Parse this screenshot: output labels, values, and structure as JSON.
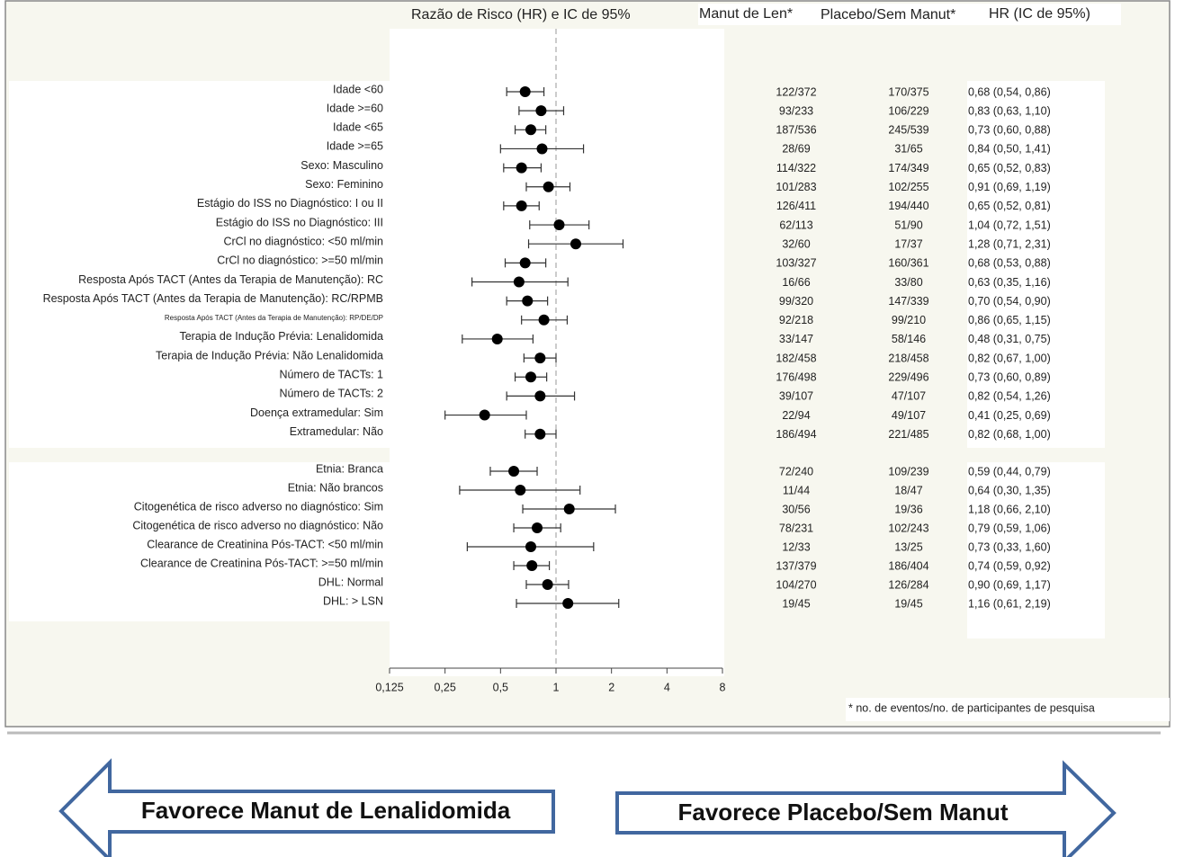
{
  "chart_data": {
    "type": "forest",
    "title": "Razão de Risco (HR) e IC de 95%",
    "column_headers": [
      "Manut de Len*",
      "Placebo/Sem Manut*",
      "HR (IC de 95%)"
    ],
    "footnote": "* no. de eventos/no. de participantes de pesquisa",
    "arrow_left": "Favorece Manut de Lenalidomida",
    "arrow_right": "Favorece Placebo/Sem Manut",
    "log_scale": true,
    "xlim": [
      0.125,
      8
    ],
    "xticks": [
      {
        "value": 0.125,
        "label": "0,125"
      },
      {
        "value": 0.25,
        "label": "0,25"
      },
      {
        "value": 0.5,
        "label": "0,5"
      },
      1,
      2,
      4,
      8
    ],
    "reference_line": 1,
    "color": "#000000",
    "categories": [
      "Idade <60",
      "Idade >=60",
      "Idade <65",
      "Idade >=65",
      "Sexo: Masculino",
      "Sexo: Feminino",
      "Estágio do ISS no Diagnóstico: I ou II",
      "Estágio do ISS no Diagnóstico: III",
      "CrCl no diagnóstico: <50 ml/min",
      "CrCl no diagnóstico: >=50 ml/min",
      "Resposta Após TACT (Antes da Terapia de Manutenção): RC",
      "Resposta Após TACT (Antes da Terapia de Manutenção): RC/RPMB",
      "Resposta Após TACT (Antes da Terapia de Manutenção): RP/DE/DP",
      "Terapia de Indução Prévia: Lenalidomida",
      "Terapia de Indução Prévia: Não Lenalidomida",
      "Número de TACTs: 1",
      "Número de TACTs: 2",
      "Doença extramedular: Sim",
      "Extramedular: Não",
      "Etnia: Branca",
      "Etnia: Não brancos",
      "Citogenética de risco adverso no diagnóstico: Sim",
      "Citogenética de risco adverso no diagnóstico: Não",
      "Clearance de Creatinina Pós-TACT: <50 ml/min",
      "Clearance de Creatinina Pós-TACT: >=50 ml/min",
      "DHL: Normal",
      "DHL: > LSN"
    ],
    "hr": [
      0.68,
      0.83,
      0.73,
      0.84,
      0.65,
      0.91,
      0.65,
      1.04,
      1.28,
      0.68,
      0.63,
      0.7,
      0.86,
      0.48,
      0.82,
      0.73,
      0.82,
      0.41,
      0.82,
      0.59,
      0.64,
      1.18,
      0.79,
      0.73,
      0.74,
      0.9,
      1.16
    ],
    "lower": [
      0.54,
      0.63,
      0.6,
      0.5,
      0.52,
      0.69,
      0.52,
      0.72,
      0.71,
      0.53,
      0.35,
      0.54,
      0.65,
      0.31,
      0.67,
      0.6,
      0.54,
      0.25,
      0.68,
      0.44,
      0.3,
      0.66,
      0.59,
      0.33,
      0.59,
      0.69,
      0.61
    ],
    "upper": [
      0.86,
      1.1,
      0.88,
      1.41,
      0.83,
      1.19,
      0.81,
      1.51,
      2.31,
      0.88,
      1.16,
      0.9,
      1.15,
      0.75,
      1.0,
      0.89,
      1.26,
      0.69,
      1.0,
      0.79,
      1.35,
      2.1,
      1.06,
      1.6,
      0.92,
      1.17,
      2.19
    ],
    "n_len": [
      "122/372",
      "93/233",
      "187/536",
      "28/69",
      "114/322",
      "101/283",
      "126/411",
      "62/113",
      "32/60",
      "103/327",
      "16/66",
      "99/320",
      "92/218",
      "33/147",
      "182/458",
      "176/498",
      "39/107",
      "22/94",
      "186/494",
      "72/240",
      "11/44",
      "30/56",
      "78/231",
      "12/33",
      "137/379",
      "104/270",
      "19/45"
    ],
    "n_placebo": [
      "170/375",
      "106/229",
      "245/539",
      "31/65",
      "174/349",
      "102/255",
      "194/440",
      "51/90",
      "17/37",
      "160/361",
      "33/80",
      "147/339",
      "99/210",
      "58/146",
      "218/458",
      "229/496",
      "47/107",
      "49/107",
      "221/485",
      "109/239",
      "18/47",
      "19/36",
      "102/243",
      "13/25",
      "186/404",
      "126/284",
      "19/45"
    ],
    "hr_ci_labels": [
      "0,68 (0,54, 0,86)",
      "0,83 (0,63, 1,10)",
      "0,73 (0,60, 0,88)",
      "0,84 (0,50, 1,41)",
      "0,65 (0,52, 0,83)",
      "0,91 (0,69, 1,19)",
      "0,65 (0,52, 0,81)",
      "1,04 (0,72, 1,51)",
      "1,28 (0,71, 2,31)",
      "0,68 (0,53, 0,88)",
      "0,63 (0,35, 1,16)",
      "0,70 (0,54, 0,90)",
      "0,86 (0,65, 1,15)",
      "0,48 (0,31, 0,75)",
      "0,82 (0,67, 1,00)",
      "0,73 (0,60, 0,89)",
      "0,82 (0,54, 1,26)",
      "0,41 (0,25, 0,69)",
      "0,82 (0,68, 1,00)",
      "0,59 (0,44, 0,79)",
      "0,64 (0,30, 1,35)",
      "1,18 (0,66, 2,10)",
      "0,79 (0,59, 1,06)",
      "0,73 (0,33, 1,60)",
      "0,74 (0,59, 0,92)",
      "0,90 (0,69, 1,17)",
      "1,16 (0,61, 2,19)"
    ]
  }
}
